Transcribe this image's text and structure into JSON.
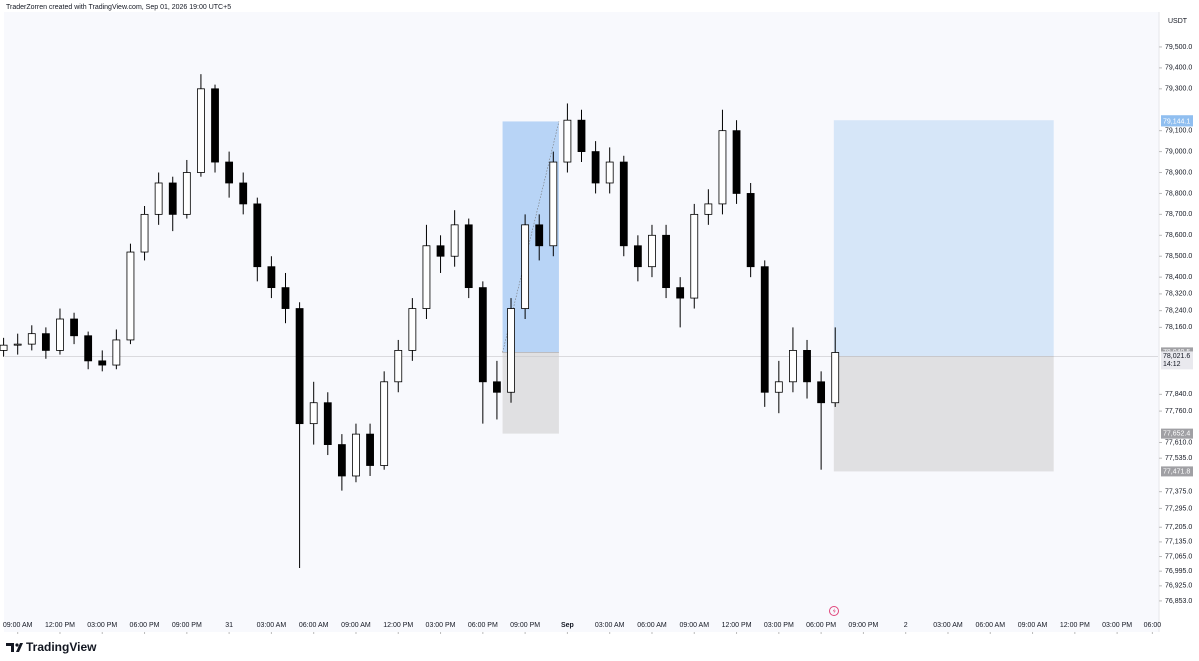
{
  "chart_data": {
    "type": "candlestick",
    "header": "TraderZorren created with TradingView.com, Sep 01, 2026 19:00 UTC+5",
    "currency": "USDT",
    "brand": "TradingView",
    "x": [
      -1,
      0,
      1,
      2,
      3,
      4,
      5,
      6,
      7,
      8,
      9,
      10,
      11,
      12,
      13,
      14,
      15,
      16,
      17,
      18,
      19,
      20,
      21,
      22,
      23,
      24,
      25,
      26,
      27,
      28,
      29,
      30,
      31,
      32,
      33,
      34,
      35,
      36,
      37,
      38,
      39,
      40,
      41,
      42,
      43,
      44,
      45,
      46,
      47,
      48,
      49,
      50,
      51,
      52,
      53,
      54,
      55,
      56,
      57,
      58
    ],
    "open": [
      78050,
      78075,
      78080,
      78130,
      78050,
      78200,
      78120,
      78000,
      77980,
      78100,
      78520,
      78700,
      78850,
      78700,
      78900,
      79300,
      78950,
      78850,
      78750,
      78450,
      78350,
      78250,
      77700,
      77800,
      77600,
      77450,
      77650,
      77500,
      77900,
      78050,
      78250,
      78550,
      78500,
      78650,
      78350,
      77900,
      77850,
      78250,
      78650,
      78550,
      78950,
      79150,
      79000,
      78850,
      78950,
      78550,
      78450,
      78600,
      78350,
      78300,
      78700,
      78750,
      79100,
      78800,
      78450,
      77850,
      77900,
      78050,
      77900,
      77800
    ],
    "high": [
      78110,
      78130,
      78170,
      78160,
      78250,
      78230,
      78140,
      78050,
      78150,
      78560,
      78740,
      78900,
      78880,
      78960,
      79370,
      79320,
      79000,
      78900,
      78780,
      78500,
      78420,
      78280,
      77900,
      77850,
      77650,
      77700,
      77700,
      77950,
      78100,
      78300,
      78650,
      78600,
      78720,
      78680,
      78380,
      78000,
      78300,
      78700,
      78700,
      79000,
      79230,
      79200,
      79050,
      79020,
      78980,
      78600,
      78650,
      78650,
      78400,
      78750,
      78820,
      79200,
      79150,
      78850,
      78480,
      78000,
      78160,
      78100,
      77950,
      78160
    ],
    "low": [
      78020,
      78030,
      78050,
      78010,
      78030,
      78080,
      77960,
      77950,
      77960,
      78080,
      78480,
      78650,
      78620,
      78680,
      78880,
      78900,
      78780,
      78700,
      78380,
      78300,
      78180,
      77010,
      77600,
      77550,
      77380,
      77420,
      77450,
      77480,
      77850,
      78000,
      78200,
      78420,
      78450,
      78300,
      77700,
      77720,
      77800,
      78200,
      78480,
      78500,
      78900,
      78950,
      78800,
      78800,
      78500,
      78380,
      78400,
      78300,
      78160,
      78250,
      78650,
      78700,
      78750,
      78400,
      77780,
      77750,
      77850,
      77820,
      77480,
      77780
    ],
    "close": [
      78075,
      78080,
      78130,
      78050,
      78200,
      78120,
      78000,
      77980,
      78100,
      78520,
      78700,
      78850,
      78700,
      78900,
      79300,
      78950,
      78850,
      78750,
      78450,
      78350,
      78250,
      77700,
      77800,
      77600,
      77450,
      77650,
      77500,
      77900,
      78050,
      78250,
      78550,
      78500,
      78650,
      78350,
      77900,
      77850,
      78250,
      78650,
      78550,
      78950,
      79150,
      79000,
      78850,
      78950,
      78550,
      78450,
      78600,
      78350,
      78300,
      78700,
      78750,
      79100,
      78800,
      78450,
      77850,
      77900,
      78050,
      77900,
      77800,
      78040
    ],
    "up_color": "#ffffff",
    "down_color": "#000000",
    "xlim": [
      -0.9,
      80.9
    ],
    "ylim": [
      76714,
      79667
    ],
    "xticks": [
      {
        "value": 0,
        "label": "09:00 AM"
      },
      {
        "value": 3,
        "label": "12:00 PM"
      },
      {
        "value": 6,
        "label": "03:00 PM"
      },
      {
        "value": 9,
        "label": "06:00 PM"
      },
      {
        "value": 12,
        "label": "09:00 PM"
      },
      {
        "value": 15,
        "label": "31"
      },
      {
        "value": 18,
        "label": "03:00 AM"
      },
      {
        "value": 21,
        "label": "06:00 AM"
      },
      {
        "value": 24,
        "label": "09:00 AM"
      },
      {
        "value": 27,
        "label": "12:00 PM"
      },
      {
        "value": 30,
        "label": "03:00 PM"
      },
      {
        "value": 33,
        "label": "06:00 PM"
      },
      {
        "value": 36,
        "label": "09:00 PM"
      },
      {
        "value": 39,
        "label": "Sep"
      },
      {
        "value": 42,
        "label": "03:00 AM"
      },
      {
        "value": 45,
        "label": "06:00 AM"
      },
      {
        "value": 48,
        "label": "09:00 AM"
      },
      {
        "value": 51,
        "label": "12:00 PM"
      },
      {
        "value": 54,
        "label": "03:00 PM"
      },
      {
        "value": 57,
        "label": "06:00 PM"
      },
      {
        "value": 60,
        "label": "09:00 PM"
      },
      {
        "value": 63,
        "label": "2"
      },
      {
        "value": 66,
        "label": "03:00 AM"
      },
      {
        "value": 69,
        "label": "06:00 AM"
      },
      {
        "value": 72,
        "label": "09:00 AM"
      },
      {
        "value": 75,
        "label": "12:00 PM"
      },
      {
        "value": 78,
        "label": "03:00 PM"
      },
      {
        "value": 80.5,
        "label": "06:00"
      }
    ],
    "yticks": [
      {
        "value": 79500,
        "label": "79,500.0"
      },
      {
        "value": 79400,
        "label": "79,400.0"
      },
      {
        "value": 79300,
        "label": "79,300.0"
      },
      {
        "value": 79100,
        "label": "79,100.0"
      },
      {
        "value": 79000,
        "label": "79,000.0"
      },
      {
        "value": 78900,
        "label": "78,900.0"
      },
      {
        "value": 78800,
        "label": "78,800.0"
      },
      {
        "value": 78700,
        "label": "78,700.0"
      },
      {
        "value": 78600,
        "label": "78,600.0"
      },
      {
        "value": 78500,
        "label": "78,500.0"
      },
      {
        "value": 78400,
        "label": "78,400.0"
      },
      {
        "value": 78320,
        "label": "78,320.0"
      },
      {
        "value": 78240,
        "label": "78,240.0"
      },
      {
        "value": 78160,
        "label": "78,160.0"
      },
      {
        "value": 77840,
        "label": "77,840.0"
      },
      {
        "value": 77760,
        "label": "77,760.0"
      },
      {
        "value": 77610,
        "label": "77,610.0"
      },
      {
        "value": 77535,
        "label": "77,535.0"
      },
      {
        "value": 77375,
        "label": "77,375.0"
      },
      {
        "value": 77295,
        "label": "77,295.0"
      },
      {
        "value": 77205,
        "label": "77,205.0"
      },
      {
        "value": 77135,
        "label": "77,135.0"
      },
      {
        "value": 77065,
        "label": "77,065.0"
      },
      {
        "value": 76995,
        "label": "76,995.0"
      },
      {
        "value": 76925,
        "label": "76,925.0"
      },
      {
        "value": 76853,
        "label": "76,853.0"
      }
    ],
    "positions": [
      {
        "x_start": 34.4,
        "x_end": 38.4,
        "entry": 78040.5,
        "target": 79144.1,
        "stop": 77652.4,
        "target_color": "#b8d4f6",
        "stop_color": "#e0e0e2"
      },
      {
        "x_start": 57.9,
        "x_end": 73.5,
        "entry": 78021.4,
        "target": 79149.9,
        "stop": 77471.8,
        "target_color": "#d6e6f8",
        "stop_color": "#e0e0e2"
      }
    ],
    "price_labels": [
      {
        "value": 79149.9,
        "label": "79,149.9",
        "color": "#90bff0"
      },
      {
        "value": 79144.1,
        "label": "79,144.1",
        "color": "#90bff0"
      },
      {
        "value": 78040.5,
        "label": "78,040.5",
        "color": "#a0a0a4"
      },
      {
        "value": 78021.4,
        "label": "78,021.4",
        "color": "#3c3c44"
      },
      {
        "value": 77652.4,
        "label": "77,652.4",
        "color": "#a0a0a4"
      },
      {
        "value": 77471.8,
        "label": "77,471.8",
        "color": "#a0a0a4"
      }
    ],
    "current_price": {
      "value": 78021.6,
      "label": "78,021.6",
      "countdown": "14:12"
    }
  }
}
